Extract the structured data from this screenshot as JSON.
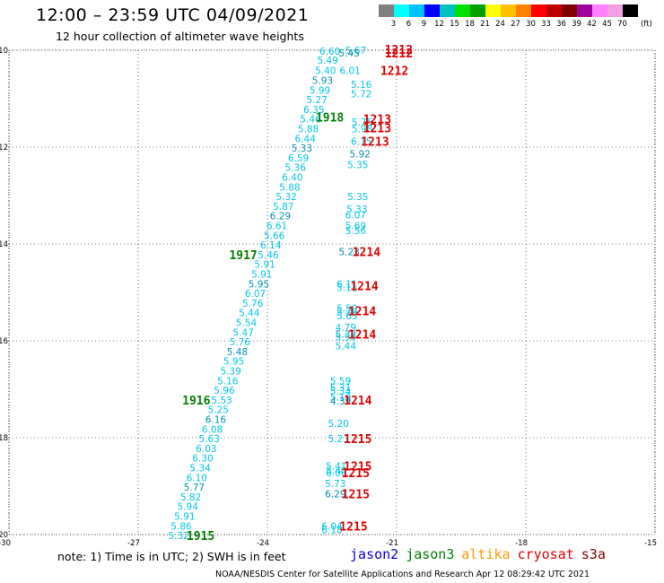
{
  "header": {
    "title": "12:00 – 23:59 UTC 04/09/2021",
    "subtitle": "12 hour collection of altimeter wave heights"
  },
  "color_scale": {
    "labels": [
      "3",
      "6",
      "9",
      "12",
      "15",
      "18",
      "21",
      "24",
      "27",
      "30",
      "33",
      "36",
      "39",
      "42",
      "45",
      "70"
    ],
    "colors": [
      "#808080",
      "#00ffff",
      "#00c0ff",
      "#0000ff",
      "#00c0c0",
      "#00e000",
      "#00a000",
      "#ffff00",
      "#ffc000",
      "#ff8000",
      "#ff0000",
      "#c00000",
      "#800000",
      "#a000a0",
      "#ff80ff",
      "#f0a0e0",
      "#000000"
    ],
    "unit": "(ft)"
  },
  "axes": {
    "lat_ticks": [
      "-10",
      "-12",
      "-14",
      "-16",
      "-18",
      "-20"
    ],
    "lon_ticks": [
      "-30",
      "-27",
      "-24",
      "-21",
      "-18",
      "-15"
    ],
    "lat_values": [
      -10,
      -12,
      -14,
      -16,
      -18,
      -20
    ],
    "lon_values": [
      -30,
      -27,
      -24,
      -21,
      -18,
      -15
    ],
    "lon_range": [
      -30,
      -15
    ],
    "lat_range": [
      -20,
      -10
    ]
  },
  "track_values": {
    "color": "#00c8e6",
    "dark_color": "#0090b0",
    "main": [
      {
        "lat": -10.02,
        "lon": -22.55,
        "v": "6.60"
      },
      {
        "lat": -10.2,
        "lon": -22.6,
        "v": "5.49"
      },
      {
        "lat": -10.42,
        "lon": -22.65,
        "v": "5.40"
      },
      {
        "lat": -10.62,
        "lon": -22.72,
        "v": "5.93"
      },
      {
        "lat": -10.82,
        "lon": -22.78,
        "v": "5.99"
      },
      {
        "lat": -11.02,
        "lon": -22.85,
        "v": "5.27"
      },
      {
        "lat": -11.22,
        "lon": -22.92,
        "v": "6.35"
      },
      {
        "lat": -11.42,
        "lon": -23.0,
        "v": "5.46"
      },
      {
        "lat": -11.62,
        "lon": -23.05,
        "v": "5.88"
      },
      {
        "lat": -11.82,
        "lon": -23.12,
        "v": "6.44"
      },
      {
        "lat": -12.02,
        "lon": -23.2,
        "v": "5.33"
      },
      {
        "lat": -12.22,
        "lon": -23.28,
        "v": "6.59"
      },
      {
        "lat": -12.42,
        "lon": -23.35,
        "v": "5.36"
      },
      {
        "lat": -12.62,
        "lon": -23.42,
        "v": "6.40"
      },
      {
        "lat": -12.82,
        "lon": -23.48,
        "v": "5.88"
      },
      {
        "lat": -13.02,
        "lon": -23.56,
        "v": "5.32"
      },
      {
        "lat": -13.22,
        "lon": -23.63,
        "v": "5.87"
      },
      {
        "lat": -13.42,
        "lon": -23.7,
        "v": "6.29"
      },
      {
        "lat": -13.62,
        "lon": -23.78,
        "v": "6.61"
      },
      {
        "lat": -13.82,
        "lon": -23.84,
        "v": "5.66"
      },
      {
        "lat": -14.02,
        "lon": -23.92,
        "v": "6.14"
      },
      {
        "lat": -14.22,
        "lon": -23.98,
        "v": "5.46"
      },
      {
        "lat": -14.42,
        "lon": -24.06,
        "v": "5.91"
      },
      {
        "lat": -14.62,
        "lon": -24.13,
        "v": "5.91"
      },
      {
        "lat": -14.82,
        "lon": -24.2,
        "v": "5.95"
      },
      {
        "lat": -15.02,
        "lon": -24.28,
        "v": "6.07"
      },
      {
        "lat": -15.22,
        "lon": -24.34,
        "v": "5.76"
      },
      {
        "lat": -15.42,
        "lon": -24.42,
        "v": "5.44"
      },
      {
        "lat": -15.62,
        "lon": -24.49,
        "v": "5.54"
      },
      {
        "lat": -15.82,
        "lon": -24.56,
        "v": "5.47"
      },
      {
        "lat": -16.02,
        "lon": -24.64,
        "v": "5.76"
      },
      {
        "lat": -16.22,
        "lon": -24.7,
        "v": "5.48"
      },
      {
        "lat": -16.42,
        "lon": -24.78,
        "v": "5.95"
      },
      {
        "lat": -16.62,
        "lon": -24.85,
        "v": "5.39"
      },
      {
        "lat": -16.82,
        "lon": -24.92,
        "v": "5.16"
      },
      {
        "lat": -17.02,
        "lon": -25.0,
        "v": "5.96"
      },
      {
        "lat": -17.22,
        "lon": -25.06,
        "v": "5.53"
      },
      {
        "lat": -17.42,
        "lon": -25.14,
        "v": "5.25"
      },
      {
        "lat": -17.62,
        "lon": -25.2,
        "v": "6.16"
      },
      {
        "lat": -17.82,
        "lon": -25.28,
        "v": "6.08"
      },
      {
        "lat": -18.02,
        "lon": -25.35,
        "v": "5.63"
      },
      {
        "lat": -18.22,
        "lon": -25.42,
        "v": "6.03"
      },
      {
        "lat": -18.42,
        "lon": -25.5,
        "v": "6.30"
      },
      {
        "lat": -18.62,
        "lon": -25.56,
        "v": "5.34"
      },
      {
        "lat": -18.82,
        "lon": -25.64,
        "v": "6.10"
      },
      {
        "lat": -19.02,
        "lon": -25.7,
        "v": "5.77"
      },
      {
        "lat": -19.22,
        "lon": -25.78,
        "v": "5.82"
      },
      {
        "lat": -19.42,
        "lon": -25.85,
        "v": "5.94"
      },
      {
        "lat": -19.62,
        "lon": -25.92,
        "v": "5.91"
      },
      {
        "lat": -19.82,
        "lon": -26.0,
        "v": "5.86"
      },
      {
        "lat": -20.02,
        "lon": -26.06,
        "v": "5.32"
      }
    ],
    "right": [
      {
        "lat": -10.0,
        "lon": -21.95,
        "v": "5.67"
      },
      {
        "lat": -10.06,
        "lon": -22.1,
        "v": "5.45"
      },
      {
        "lat": -10.42,
        "lon": -22.08,
        "v": "6.01"
      },
      {
        "lat": -10.7,
        "lon": -21.82,
        "v": "5.16"
      },
      {
        "lat": -10.9,
        "lon": -21.82,
        "v": "5.72"
      },
      {
        "lat": -11.48,
        "lon": -21.8,
        "v": "5.75"
      },
      {
        "lat": -11.62,
        "lon": -21.8,
        "v": "5.98"
      },
      {
        "lat": -11.88,
        "lon": -21.82,
        "v": "6.15"
      },
      {
        "lat": -12.14,
        "lon": -21.85,
        "v": "5.92"
      },
      {
        "lat": -12.36,
        "lon": -21.9,
        "v": "5.35"
      },
      {
        "lat": -13.02,
        "lon": -21.9,
        "v": "5.35"
      },
      {
        "lat": -13.28,
        "lon": -21.92,
        "v": "5.33"
      },
      {
        "lat": -13.4,
        "lon": -21.95,
        "v": "6.07"
      },
      {
        "lat": -13.62,
        "lon": -21.95,
        "v": "5.69"
      },
      {
        "lat": -13.72,
        "lon": -21.95,
        "v": "5.56"
      },
      {
        "lat": -14.16,
        "lon": -22.1,
        "v": "5.23"
      },
      {
        "lat": -14.82,
        "lon": -22.15,
        "v": "6.11"
      },
      {
        "lat": -14.9,
        "lon": -22.15,
        "v": "5.11"
      },
      {
        "lat": -15.32,
        "lon": -22.15,
        "v": "5.50"
      },
      {
        "lat": -15.4,
        "lon": -22.15,
        "v": "5.79"
      },
      {
        "lat": -15.48,
        "lon": -22.15,
        "v": "5.65"
      },
      {
        "lat": -15.72,
        "lon": -22.18,
        "v": "4.79"
      },
      {
        "lat": -15.86,
        "lon": -22.18,
        "v": "5.32"
      },
      {
        "lat": -15.92,
        "lon": -22.18,
        "v": "5.53"
      },
      {
        "lat": -16.1,
        "lon": -22.18,
        "v": "5.44"
      },
      {
        "lat": -16.82,
        "lon": -22.3,
        "v": "5.59"
      },
      {
        "lat": -16.96,
        "lon": -22.3,
        "v": "5.31"
      },
      {
        "lat": -17.04,
        "lon": -22.3,
        "v": "5.34"
      },
      {
        "lat": -17.16,
        "lon": -22.3,
        "v": "5.19"
      },
      {
        "lat": -17.24,
        "lon": -22.3,
        "v": "4.39"
      },
      {
        "lat": -17.7,
        "lon": -22.35,
        "v": "5.20"
      },
      {
        "lat": -18.02,
        "lon": -22.35,
        "v": "5.23"
      },
      {
        "lat": -18.58,
        "lon": -22.4,
        "v": "5.41"
      },
      {
        "lat": -18.68,
        "lon": -22.4,
        "v": "5.40"
      },
      {
        "lat": -18.72,
        "lon": -22.4,
        "v": "6.06"
      },
      {
        "lat": -18.94,
        "lon": -22.42,
        "v": "5.73"
      },
      {
        "lat": -19.16,
        "lon": -22.42,
        "v": "6.29"
      },
      {
        "lat": -19.82,
        "lon": -22.5,
        "v": "6.04"
      },
      {
        "lat": -19.9,
        "lon": -22.5,
        "v": "6.18"
      }
    ]
  },
  "time_labels": [
    {
      "lat": -11.38,
      "lon": -22.55,
      "v": "1918",
      "color": "#008000"
    },
    {
      "lat": -14.22,
      "lon": -24.56,
      "v": "1917",
      "color": "#008000"
    },
    {
      "lat": -17.22,
      "lon": -25.65,
      "v": "1916",
      "color": "#008000"
    },
    {
      "lat": -20.02,
      "lon": -25.55,
      "v": "1915",
      "color": "#008000"
    },
    {
      "lat": -9.98,
      "lon": -20.95,
      "v": "1212",
      "color": "#e00000"
    },
    {
      "lat": -10.06,
      "lon": -20.95,
      "v": "1212",
      "color": "#e00000"
    },
    {
      "lat": -10.42,
      "lon": -21.05,
      "v": "1212",
      "color": "#e00000"
    },
    {
      "lat": -11.42,
      "lon": -21.45,
      "v": "1213",
      "color": "#e00000"
    },
    {
      "lat": -11.6,
      "lon": -21.45,
      "v": "1213",
      "color": "#e00000"
    },
    {
      "lat": -11.88,
      "lon": -21.5,
      "v": "1213",
      "color": "#e00000"
    },
    {
      "lat": -14.16,
      "lon": -21.7,
      "v": "1214",
      "color": "#e00000"
    },
    {
      "lat": -14.86,
      "lon": -21.75,
      "v": "1214",
      "color": "#e00000"
    },
    {
      "lat": -15.38,
      "lon": -21.8,
      "v": "1214",
      "color": "#e00000"
    },
    {
      "lat": -15.86,
      "lon": -21.8,
      "v": "1214",
      "color": "#e00000"
    },
    {
      "lat": -17.22,
      "lon": -21.9,
      "v": "1214",
      "color": "#e00000"
    },
    {
      "lat": -18.02,
      "lon": -21.9,
      "v": "1215",
      "color": "#e00000"
    },
    {
      "lat": -18.58,
      "lon": -21.9,
      "v": "1215",
      "color": "#e00000"
    },
    {
      "lat": -18.72,
      "lon": -21.95,
      "v": "1215",
      "color": "#e00000"
    },
    {
      "lat": -19.16,
      "lon": -21.95,
      "v": "1215",
      "color": "#e00000"
    },
    {
      "lat": -19.82,
      "lon": -22.0,
      "v": "1215",
      "color": "#e00000"
    }
  ],
  "note": "note:  1) Time is in UTC;  2) SWH is in feet",
  "legend": [
    {
      "name": "jason2",
      "color": "#0000e0"
    },
    {
      "name": "jason3",
      "color": "#008000"
    },
    {
      "name": "altika",
      "color": "#ff9900"
    },
    {
      "name": "cryosat",
      "color": "#e00000"
    },
    {
      "name": "s3a",
      "color": "#800000"
    }
  ],
  "footer": "NOAA/NESDIS Center for Satellite Applications and Research    Apr 12 08:29:42 UTC 2021"
}
